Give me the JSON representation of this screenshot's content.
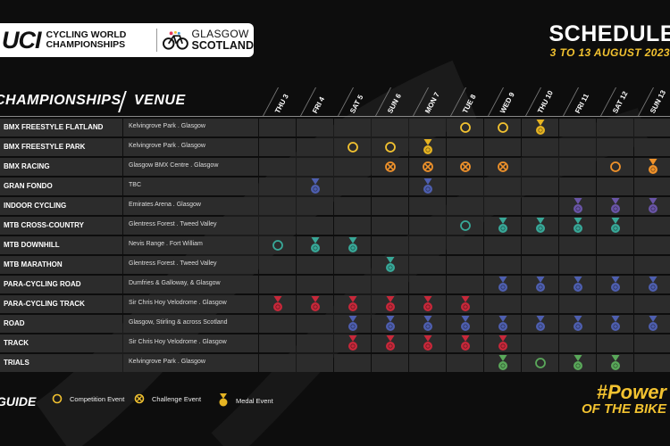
{
  "logo": {
    "uci": "UCI",
    "cwc_line1": "CYCLING WORLD",
    "cwc_line2": "CHAMPIONSHIPS",
    "glasgow": "GLASGOW",
    "scotland": "SCOTLAND"
  },
  "title": "SCHEDULE",
  "date_range": "3 TO 13 AUGUST 2023",
  "headers": {
    "championships": "CHAMPIONSHIPS",
    "venue": "VENUE"
  },
  "days": [
    "THU 3",
    "FRI 4",
    "SAT 5",
    "SUN 6",
    "MON 7",
    "TUE 8",
    "WED 9",
    "THU 10",
    "FRI 11",
    "SAT 12",
    "SUN 13"
  ],
  "colors": {
    "competition": "#f2c230",
    "medal_gold": "#e6b422",
    "blue": "#4e5fb0",
    "teal": "#38a898",
    "red": "#c8283a",
    "purple": "#6a55a8",
    "green": "#5aa85a",
    "orange": "#f0922a",
    "row_bg": "#2c2c2c",
    "background": "#0d0d0d"
  },
  "rows": [
    {
      "name": "BMX FREESTYLE FLATLAND",
      "venue": "Kelvingrove Park . Glasgow",
      "events": [
        null,
        null,
        null,
        null,
        null,
        {
          "type": "circle",
          "color": "competition"
        },
        {
          "type": "circle",
          "color": "competition"
        },
        {
          "type": "medal",
          "color": "medal_gold"
        },
        null,
        null,
        null
      ]
    },
    {
      "name": "BMX FREESTYLE PARK",
      "venue": "Kelvingrove Park . Glasgow",
      "events": [
        null,
        null,
        {
          "type": "circle",
          "color": "competition"
        },
        {
          "type": "circle",
          "color": "competition"
        },
        {
          "type": "medal",
          "color": "medal_gold"
        },
        null,
        null,
        null,
        null,
        null,
        null
      ]
    },
    {
      "name": "BMX RACING",
      "venue": "Glasgow BMX Centre . Glasgow",
      "events": [
        null,
        null,
        null,
        {
          "type": "cross",
          "color": "orange"
        },
        {
          "type": "cross",
          "color": "orange"
        },
        {
          "type": "cross",
          "color": "orange"
        },
        {
          "type": "cross",
          "color": "orange"
        },
        null,
        null,
        {
          "type": "circle",
          "color": "orange"
        },
        {
          "type": "medal",
          "color": "orange"
        }
      ]
    },
    {
      "name": "GRAN FONDO",
      "venue": "TBC",
      "events": [
        null,
        {
          "type": "medal",
          "color": "blue"
        },
        null,
        null,
        {
          "type": "medal",
          "color": "blue"
        },
        null,
        null,
        null,
        null,
        null,
        null
      ]
    },
    {
      "name": "INDOOR CYCLING",
      "venue": "Emirates Arena . Glasgow",
      "events": [
        null,
        null,
        null,
        null,
        null,
        null,
        null,
        null,
        {
          "type": "medal",
          "color": "purple"
        },
        {
          "type": "medal",
          "color": "purple"
        },
        {
          "type": "medal",
          "color": "purple"
        }
      ]
    },
    {
      "name": "MTB CROSS-COUNTRY",
      "venue": "Glentress Forest . Tweed Valley",
      "events": [
        null,
        null,
        null,
        null,
        null,
        {
          "type": "circle",
          "color": "teal"
        },
        {
          "type": "medal",
          "color": "teal"
        },
        {
          "type": "medal",
          "color": "teal"
        },
        {
          "type": "medal",
          "color": "teal"
        },
        {
          "type": "medal",
          "color": "teal"
        },
        null
      ]
    },
    {
      "name": "MTB DOWNHILL",
      "venue": "Nevis Range . Fort William",
      "events": [
        {
          "type": "circle",
          "color": "teal"
        },
        {
          "type": "medal",
          "color": "teal"
        },
        {
          "type": "medal",
          "color": "teal"
        },
        null,
        null,
        null,
        null,
        null,
        null,
        null,
        null
      ]
    },
    {
      "name": "MTB MARATHON",
      "venue": "Glentress Forest . Tweed Valley",
      "events": [
        null,
        null,
        null,
        {
          "type": "medal",
          "color": "teal"
        },
        null,
        null,
        null,
        null,
        null,
        null,
        null
      ]
    },
    {
      "name": "PARA-CYCLING ROAD",
      "venue": "Dumfries & Galloway, & Glasgow",
      "events": [
        null,
        null,
        null,
        null,
        null,
        null,
        {
          "type": "medal",
          "color": "blue"
        },
        {
          "type": "medal",
          "color": "blue"
        },
        {
          "type": "medal",
          "color": "blue"
        },
        {
          "type": "medal",
          "color": "blue"
        },
        {
          "type": "medal",
          "color": "blue"
        }
      ]
    },
    {
      "name": "PARA-CYCLING TRACK",
      "venue": "Sir Chris Hoy Velodrome . Glasgow",
      "events": [
        {
          "type": "medal",
          "color": "red"
        },
        {
          "type": "medal",
          "color": "red"
        },
        {
          "type": "medal",
          "color": "red"
        },
        {
          "type": "medal",
          "color": "red"
        },
        {
          "type": "medal",
          "color": "red"
        },
        {
          "type": "medal",
          "color": "red"
        },
        null,
        null,
        null,
        null,
        null
      ]
    },
    {
      "name": "ROAD",
      "venue": "Glasgow, Stirling & across Scotland",
      "events": [
        null,
        null,
        {
          "type": "medal",
          "color": "blue"
        },
        {
          "type": "medal",
          "color": "blue"
        },
        {
          "type": "medal",
          "color": "blue"
        },
        {
          "type": "medal",
          "color": "blue"
        },
        {
          "type": "medal",
          "color": "blue"
        },
        {
          "type": "medal",
          "color": "blue"
        },
        {
          "type": "medal",
          "color": "blue"
        },
        {
          "type": "medal",
          "color": "blue"
        },
        {
          "type": "medal",
          "color": "blue"
        }
      ]
    },
    {
      "name": "TRACK",
      "venue": "Sir Chris Hoy Velodrome . Glasgow",
      "events": [
        null,
        null,
        {
          "type": "medal",
          "color": "red"
        },
        {
          "type": "medal",
          "color": "red"
        },
        {
          "type": "medal",
          "color": "red"
        },
        {
          "type": "medal",
          "color": "red"
        },
        {
          "type": "medal",
          "color": "red"
        },
        null,
        null,
        null,
        null
      ]
    },
    {
      "name": "TRIALS",
      "venue": "Kelvingrove Park . Glasgow",
      "events": [
        null,
        null,
        null,
        null,
        null,
        null,
        {
          "type": "medal",
          "color": "green"
        },
        {
          "type": "circle",
          "color": "green"
        },
        {
          "type": "medal",
          "color": "green"
        },
        {
          "type": "medal",
          "color": "green"
        },
        null
      ]
    }
  ],
  "legend": {
    "guide": "GUIDE",
    "competition": "Competition Event",
    "challenge": "Challenge Event",
    "medal": "Medal Event"
  },
  "slogan": {
    "line1": "#Power",
    "line2": "OF THE BIKE"
  }
}
